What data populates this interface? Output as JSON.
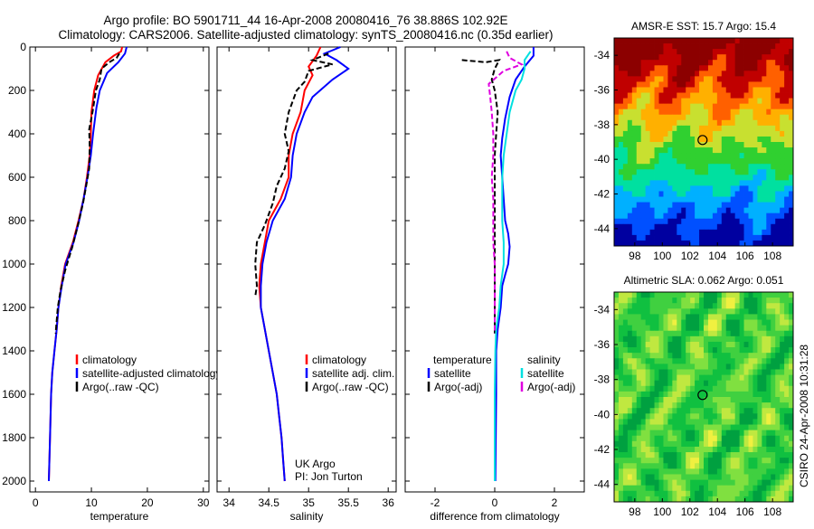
{
  "title_line1": "Argo profile: BO 5901711_44 16-Apr-2008 20080416_76 38.886S 102.92E",
  "title_line2": "Climatology: CARS2006. Satellite-adjusted climatology: synTS_20080416.nc (0.35d earlier)",
  "side_label": "CSIRO 24-Apr-2008 10:31:28",
  "credit": [
    "UK Argo",
    "PI: Jon Turton"
  ],
  "colors": {
    "climatology": "#ff0000",
    "satellite": "#0000ff",
    "argo": "#000000",
    "sal_satellite": "#00e0e0",
    "sal_argo": "#e000e0"
  },
  "chart_data": [
    {
      "type": "line",
      "name_key": "temperature",
      "xlabel": "temperature",
      "xlim": [
        -1,
        31
      ],
      "ylim": [
        2050,
        0
      ],
      "xticks": [
        0,
        10,
        20,
        30
      ],
      "yticks": [
        0,
        200,
        400,
        600,
        800,
        1000,
        1200,
        1400,
        1600,
        1800,
        2000
      ],
      "legend": [
        "climatology",
        "satellite-adjusted climatology",
        "Argo(..raw -QC)"
      ],
      "series": [
        {
          "name": "climatology",
          "color": "#ff0000",
          "dashed": false,
          "points": [
            [
              15.5,
              0
            ],
            [
              15.3,
              20
            ],
            [
              14.0,
              40
            ],
            [
              12.5,
              70
            ],
            [
              11.2,
              130
            ],
            [
              10.5,
              200
            ],
            [
              10.0,
              300
            ],
            [
              9.9,
              400
            ],
            [
              9.7,
              500
            ],
            [
              9.2,
              600
            ],
            [
              8.6,
              700
            ],
            [
              7.7,
              800
            ],
            [
              6.7,
              900
            ],
            [
              5.3,
              1000
            ],
            [
              4.6,
              1100
            ],
            [
              4.1,
              1200
            ],
            [
              3.8,
              1300
            ],
            [
              3.4,
              1400
            ],
            [
              3.0,
              1500
            ],
            [
              2.8,
              1600
            ],
            [
              2.6,
              1800
            ],
            [
              2.4,
              2000
            ]
          ]
        },
        {
          "name": "satellite-adjusted climatology",
          "color": "#0000ff",
          "dashed": false,
          "points": [
            [
              16.3,
              0
            ],
            [
              16.0,
              30
            ],
            [
              14.8,
              70
            ],
            [
              12.8,
              120
            ],
            [
              11.5,
              200
            ],
            [
              10.9,
              280
            ],
            [
              10.3,
              400
            ],
            [
              9.9,
              500
            ],
            [
              9.3,
              600
            ],
            [
              8.6,
              700
            ],
            [
              7.8,
              800
            ],
            [
              6.8,
              900
            ],
            [
              5.4,
              1000
            ],
            [
              4.7,
              1100
            ],
            [
              4.1,
              1200
            ],
            [
              3.8,
              1300
            ],
            [
              3.4,
              1400
            ],
            [
              3.0,
              1500
            ],
            [
              2.8,
              1600
            ],
            [
              2.6,
              1800
            ],
            [
              2.4,
              2000
            ]
          ]
        },
        {
          "name": "Argo(..raw -QC)",
          "color": "#000000",
          "dashed": true,
          "points": [
            [
              15.0,
              30
            ],
            [
              14.5,
              50
            ],
            [
              13.2,
              70
            ],
            [
              11.8,
              100
            ],
            [
              11.5,
              150
            ],
            [
              10.8,
              200
            ],
            [
              10.2,
              300
            ],
            [
              9.6,
              380
            ],
            [
              9.7,
              460
            ],
            [
              9.6,
              560
            ],
            [
              9.2,
              620
            ],
            [
              8.5,
              720
            ],
            [
              7.6,
              820
            ],
            [
              6.6,
              920
            ],
            [
              5.3,
              1030
            ],
            [
              4.5,
              1120
            ],
            [
              4.0,
              1200
            ],
            [
              3.6,
              1320
            ]
          ]
        }
      ]
    },
    {
      "type": "line",
      "name_key": "salinity",
      "xlabel": "salinity",
      "xlim": [
        33.85,
        36.1
      ],
      "ylim": [
        2050,
        0
      ],
      "xticks": [
        34,
        34.5,
        35,
        35.5,
        36
      ],
      "xticklabels": [
        "34",
        "34.5",
        "35",
        "35.5",
        "36"
      ],
      "legend": [
        "climatology",
        "satellite adj. clim.",
        "Argo(..raw -QC)"
      ],
      "series": [
        {
          "name": "climatology",
          "color": "#ff0000",
          "dashed": false,
          "points": [
            [
              35.15,
              0
            ],
            [
              35.1,
              40
            ],
            [
              35.0,
              90
            ],
            [
              35.05,
              130
            ],
            [
              34.95,
              200
            ],
            [
              34.9,
              300
            ],
            [
              34.8,
              400
            ],
            [
              34.75,
              500
            ],
            [
              34.75,
              600
            ],
            [
              34.65,
              700
            ],
            [
              34.5,
              800
            ],
            [
              34.45,
              900
            ],
            [
              34.4,
              1000
            ],
            [
              34.38,
              1100
            ],
            [
              34.4,
              1200
            ],
            [
              34.45,
              1300
            ],
            [
              34.5,
              1400
            ],
            [
              34.55,
              1500
            ],
            [
              34.6,
              1600
            ],
            [
              34.63,
              1700
            ],
            [
              34.66,
              1800
            ],
            [
              34.68,
              1900
            ],
            [
              34.7,
              2000
            ]
          ]
        },
        {
          "name": "satellite adj. clim.",
          "color": "#0000ff",
          "dashed": false,
          "points": [
            [
              35.4,
              0
            ],
            [
              35.2,
              30
            ],
            [
              35.35,
              60
            ],
            [
              35.5,
              100
            ],
            [
              35.3,
              150
            ],
            [
              35.05,
              230
            ],
            [
              34.95,
              300
            ],
            [
              34.85,
              400
            ],
            [
              34.8,
              500
            ],
            [
              34.78,
              600
            ],
            [
              34.7,
              700
            ],
            [
              34.55,
              800
            ],
            [
              34.47,
              900
            ],
            [
              34.42,
              1000
            ],
            [
              34.4,
              1100
            ],
            [
              34.4,
              1200
            ],
            [
              34.45,
              1300
            ],
            [
              34.5,
              1400
            ],
            [
              34.55,
              1500
            ],
            [
              34.6,
              1600
            ],
            [
              34.63,
              1700
            ],
            [
              34.66,
              1800
            ],
            [
              34.68,
              1900
            ],
            [
              34.7,
              2000
            ]
          ]
        },
        {
          "name": "Argo(..raw -QC)",
          "color": "#000000",
          "dashed": true,
          "points": [
            [
              35.25,
              30
            ],
            [
              35.05,
              60
            ],
            [
              35.3,
              80
            ],
            [
              35.0,
              110
            ],
            [
              34.95,
              160
            ],
            [
              34.85,
              200
            ],
            [
              34.75,
              300
            ],
            [
              34.7,
              400
            ],
            [
              34.75,
              480
            ],
            [
              34.7,
              560
            ],
            [
              34.6,
              640
            ],
            [
              34.55,
              720
            ],
            [
              34.45,
              820
            ],
            [
              34.35,
              900
            ],
            [
              34.33,
              1000
            ],
            [
              34.35,
              1100
            ],
            [
              34.33,
              1150
            ]
          ]
        }
      ]
    },
    {
      "type": "line",
      "name_key": "difference",
      "xlabel": "difference from climatology",
      "xlim": [
        -3,
        3
      ],
      "ylim": [
        2050,
        0
      ],
      "xticks": [
        -2,
        0,
        2
      ],
      "xticklabels": [
        "-2",
        "0",
        "2"
      ],
      "legend_left_title": "temperature",
      "legend_left": [
        "satellite",
        "Argo(-adj)"
      ],
      "legend_right_title": "salinity",
      "legend_right": [
        "satellite",
        "Argo(-adj)"
      ],
      "series": [
        {
          "name": "temperature satellite",
          "color": "#0000ff",
          "dashed": false,
          "points": [
            [
              1.3,
              0
            ],
            [
              1.3,
              40
            ],
            [
              1.0,
              90
            ],
            [
              0.7,
              150
            ],
            [
              0.5,
              230
            ],
            [
              0.35,
              330
            ],
            [
              0.25,
              420
            ],
            [
              0.2,
              500
            ],
            [
              0.25,
              600
            ],
            [
              0.3,
              700
            ],
            [
              0.35,
              800
            ],
            [
              0.45,
              860
            ],
            [
              0.5,
              920
            ],
            [
              0.45,
              1000
            ],
            [
              0.35,
              1050
            ],
            [
              0.25,
              1100
            ],
            [
              0.2,
              1200
            ],
            [
              0.1,
              1300
            ],
            [
              0.05,
              1400
            ],
            [
              0.05,
              1600
            ],
            [
              0.02,
              2000
            ]
          ]
        },
        {
          "name": "temperature Argo(-adj)",
          "color": "#000000",
          "dashed": true,
          "points": [
            [
              -1.1,
              60
            ],
            [
              -0.3,
              70
            ],
            [
              0.15,
              60
            ],
            [
              0.0,
              100
            ],
            [
              -0.1,
              150
            ],
            [
              0.0,
              200
            ],
            [
              0.1,
              300
            ],
            [
              0.05,
              400
            ],
            [
              0.0,
              500
            ],
            [
              0.0,
              600
            ],
            [
              0.0,
              800
            ],
            [
              0.0,
              1000
            ],
            [
              0.0,
              1200
            ],
            [
              0.0,
              1320
            ]
          ]
        },
        {
          "name": "salinity satellite",
          "color": "#00e0e0",
          "dashed": false,
          "points": [
            [
              1.2,
              20
            ],
            [
              1.0,
              60
            ],
            [
              1.0,
              100
            ],
            [
              0.9,
              150
            ],
            [
              0.7,
              200
            ],
            [
              0.5,
              300
            ],
            [
              0.4,
              400
            ],
            [
              0.3,
              500
            ],
            [
              0.25,
              600
            ],
            [
              0.25,
              700
            ],
            [
              0.25,
              800
            ],
            [
              0.3,
              900
            ],
            [
              0.3,
              1000
            ],
            [
              0.2,
              1100
            ],
            [
              0.15,
              1200
            ],
            [
              0.05,
              1300
            ],
            [
              0.02,
              1400
            ],
            [
              0.0,
              1600
            ],
            [
              0.0,
              2000
            ]
          ]
        },
        {
          "name": "salinity Argo(-adj)",
          "color": "#e000e0",
          "dashed": true,
          "points": [
            [
              0.4,
              20
            ],
            [
              0.5,
              50
            ],
            [
              0.9,
              80
            ],
            [
              0.3,
              110
            ],
            [
              -0.2,
              170
            ],
            [
              -0.15,
              230
            ],
            [
              -0.1,
              300
            ],
            [
              -0.05,
              400
            ],
            [
              -0.05,
              500
            ],
            [
              -0.1,
              600
            ],
            [
              -0.05,
              700
            ],
            [
              -0.05,
              800
            ],
            [
              -0.05,
              900
            ],
            [
              0.0,
              1000
            ],
            [
              0.0,
              1100
            ],
            [
              0.0,
              1200
            ],
            [
              0.0,
              1320
            ]
          ]
        }
      ]
    },
    {
      "type": "heatmap",
      "name_key": "sst",
      "title": "AMSR-E SST: 15.7 Argo: 15.4",
      "xlim": [
        96.5,
        109.5
      ],
      "ylim": [
        -45,
        -33
      ],
      "xticks": [
        98,
        100,
        102,
        104,
        106,
        108
      ],
      "yticks": [
        -34,
        -36,
        -38,
        -40,
        -42,
        -44
      ],
      "marker": [
        102.92,
        -38.886
      ],
      "palette": [
        "#0000a0",
        "#0050ff",
        "#00b0ff",
        "#00e0a0",
        "#30d030",
        "#c8e030",
        "#ffb000",
        "#ff6000",
        "#c00000",
        "#8c0000"
      ]
    },
    {
      "type": "heatmap",
      "name_key": "sla",
      "title": "Altimetric SLA: 0.062 Argo: 0.051",
      "xlim": [
        96.5,
        109.5
      ],
      "ylim": [
        -45,
        -33
      ],
      "xticks": [
        98,
        100,
        102,
        104,
        106,
        108
      ],
      "yticks": [
        -34,
        -36,
        -38,
        -40,
        -42,
        -44
      ],
      "marker": [
        102.92,
        -38.886
      ],
      "palette": [
        "#00a040",
        "#10c040",
        "#40d040",
        "#80e040",
        "#c0e840",
        "#f0f040",
        "#ffd040"
      ]
    }
  ]
}
